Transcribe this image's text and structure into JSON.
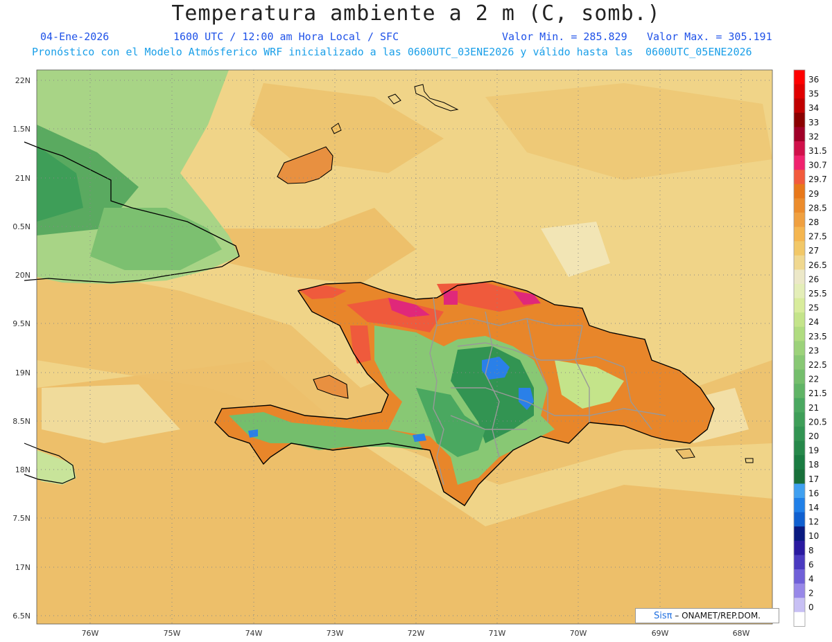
{
  "header": {
    "title": "Temperatura ambiente a 2 m (C, somb.)",
    "date": "04-Ene-2026",
    "time": "1600 UTC / 12:00 am Hora Local / SFC",
    "vmin": "Valor Min. = 285.829",
    "vmax": "Valor Max. = 305.191",
    "model_info": "Pronóstico con el Modelo Atmósferico WRF inicializado a las 0600UTC_03ENE2026 y válido hasta las  0600UTC_05ENE2026"
  },
  "colorbar": [
    {
      "label": "36",
      "color": "#ff0000"
    },
    {
      "label": "35",
      "color": "#e00000"
    },
    {
      "label": "34",
      "color": "#c00000"
    },
    {
      "label": "33",
      "color": "#8b0000"
    },
    {
      "label": "32",
      "color": "#a00028"
    },
    {
      "label": "31.5",
      "color": "#d0104a"
    },
    {
      "label": "30.7",
      "color": "#f0226e"
    },
    {
      "label": "29.7",
      "color": "#f25a3c"
    },
    {
      "label": "29",
      "color": "#e8781a"
    },
    {
      "label": "28.5",
      "color": "#ec8c2c"
    },
    {
      "label": "28",
      "color": "#f0a040"
    },
    {
      "label": "27.5",
      "color": "#f5b650"
    },
    {
      "label": "27",
      "color": "#f2c868"
    },
    {
      "label": "26.5",
      "color": "#f0d890"
    },
    {
      "label": "26",
      "color": "#ece8c8"
    },
    {
      "label": "25.5",
      "color": "#e4eeb8"
    },
    {
      "label": "25",
      "color": "#d8ec9c"
    },
    {
      "label": "24",
      "color": "#c4e48a"
    },
    {
      "label": "23.5",
      "color": "#b0dc80"
    },
    {
      "label": "23",
      "color": "#9cd27a"
    },
    {
      "label": "22.5",
      "color": "#88c874"
    },
    {
      "label": "22",
      "color": "#74be6c"
    },
    {
      "label": "21.5",
      "color": "#60b466"
    },
    {
      "label": "21",
      "color": "#4aa860"
    },
    {
      "label": "20.5",
      "color": "#3e9e58"
    },
    {
      "label": "20",
      "color": "#329452"
    },
    {
      "label": "19",
      "color": "#26884a"
    },
    {
      "label": "18",
      "color": "#1a7c42"
    },
    {
      "label": "17",
      "color": "#18703a"
    },
    {
      "label": "16",
      "color": "#40a0f0"
    },
    {
      "label": "14",
      "color": "#2080e8"
    },
    {
      "label": "12",
      "color": "#1060d0"
    },
    {
      "label": "10",
      "color": "#0a1a80"
    },
    {
      "label": "8",
      "color": "#2a1aa0"
    },
    {
      "label": "6",
      "color": "#4a3ac0"
    },
    {
      "label": "4",
      "color": "#7060d8"
    },
    {
      "label": "2",
      "color": "#9888e8"
    },
    {
      "label": "0",
      "color": "#c8c0f4"
    }
  ],
  "colorbar_extra": {
    "color": "#ffffff"
  },
  "axes": {
    "lat_labels": [
      "22N",
      "1.5N",
      "21N",
      "0.5N",
      "20N",
      "9.5N",
      "19N",
      "8.5N",
      "18N",
      "7.5N",
      "17N",
      "6.5N"
    ],
    "lon_labels": [
      "76W",
      "75W",
      "74W",
      "73W",
      "72W",
      "71W",
      "70W",
      "69W",
      "68W"
    ]
  },
  "map_colors": {
    "sea_base": "#f0d488",
    "sea_warm": "#ebb860",
    "sea_light": "#f2e2a8",
    "land_hot": "#e8781a",
    "land_red": "#ef5a3c",
    "land_mag": "#e0287a",
    "land_green": "#74be6c",
    "land_dkgreen": "#329452",
    "land_light": "#c4e48a",
    "land_blue": "#2a80e8",
    "cuba_green": "#5aaa60",
    "coast": "#000000",
    "border": "#999999",
    "grid": "#888888"
  },
  "credit": {
    "sis": "Sisπ",
    "text": " – ONAMET/REP.DOM."
  }
}
